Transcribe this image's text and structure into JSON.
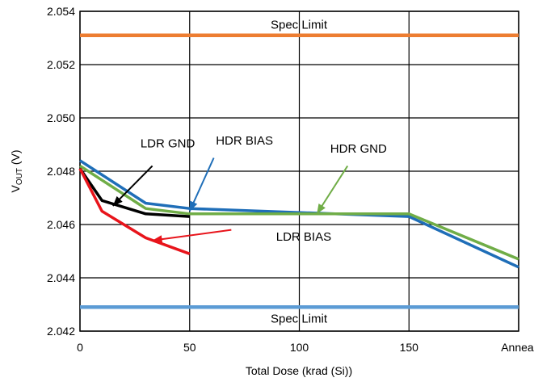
{
  "chart_data": {
    "type": "line",
    "title": "",
    "xlabel": "Total Dose (krad (Si))",
    "ylabel": {
      "main": "V",
      "sub": "OUT",
      "suffix": " (V)"
    },
    "x_categories": [
      "0",
      "50",
      "100",
      "150",
      "Anneal"
    ],
    "ylim": [
      2.042,
      2.054
    ],
    "yticks": [
      "2.042",
      "2.044",
      "2.046",
      "2.048",
      "2.050",
      "2.052",
      "2.054"
    ],
    "grid": true,
    "spec_limits": [
      {
        "label": "Spec Limit",
        "value": 2.0531,
        "color": "#ED7D31"
      },
      {
        "label": "Spec Limit",
        "value": 2.0429,
        "color": "#5B9BD5"
      }
    ],
    "series": [
      {
        "name": "LDR GND",
        "color": "#000000",
        "x": [
          0,
          10,
          30,
          50
        ],
        "y": [
          2.0481,
          2.0469,
          2.0464,
          2.0463
        ]
      },
      {
        "name": "LDR BIAS",
        "color": "#E8141B",
        "x": [
          0,
          10,
          30,
          50
        ],
        "y": [
          2.0481,
          2.0465,
          2.0455,
          2.0449
        ]
      },
      {
        "name": "HDR BIAS",
        "color": "#1F6EB8",
        "x": [
          0,
          30,
          50,
          150,
          200
        ],
        "y": [
          2.0484,
          2.0468,
          2.0466,
          2.0463,
          2.0444
        ]
      },
      {
        "name": "HDR GND",
        "color": "#70AD47",
        "x": [
          0,
          30,
          50,
          150,
          200
        ],
        "y": [
          2.0482,
          2.0466,
          2.0464,
          2.0464,
          2.0447
        ]
      }
    ]
  }
}
